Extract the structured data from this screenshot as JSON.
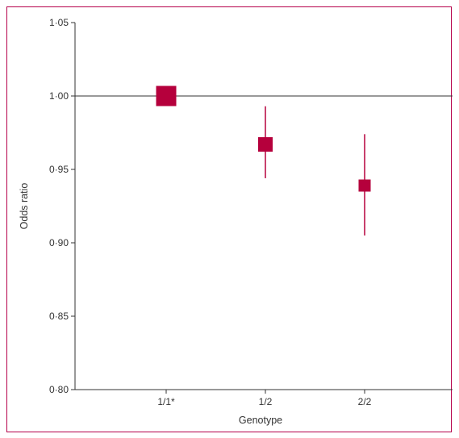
{
  "colors": {
    "marker": "#b5003c",
    "frame": "#b5004a",
    "axis": "#333333",
    "reference_line": "#333333"
  },
  "chart_data": {
    "type": "scatter",
    "subtype": "forest-plot",
    "title": "",
    "xlabel": "Genotype",
    "ylabel": "Odds ratio",
    "ylim": [
      0.8,
      1.05
    ],
    "yticks": [
      {
        "value": 0.8,
        "label": "0·80"
      },
      {
        "value": 0.85,
        "label": "0·85"
      },
      {
        "value": 0.9,
        "label": "0·90"
      },
      {
        "value": 0.95,
        "label": "0·95"
      },
      {
        "value": 1.0,
        "label": "1·00"
      },
      {
        "value": 1.05,
        "label": "1·05"
      }
    ],
    "categories": [
      "1/1*",
      "1/2",
      "2/2"
    ],
    "points": [
      {
        "category": "1/1*",
        "or": 1.0,
        "ci_low": null,
        "ci_high": null,
        "weight": "large"
      },
      {
        "category": "1/2",
        "or": 0.967,
        "ci_low": 0.944,
        "ci_high": 0.993,
        "weight": "medium"
      },
      {
        "category": "2/2",
        "or": 0.939,
        "ci_low": 0.905,
        "ci_high": 0.974,
        "weight": "small"
      }
    ],
    "reference_line": 1.0,
    "grid": false,
    "legend": "none"
  }
}
